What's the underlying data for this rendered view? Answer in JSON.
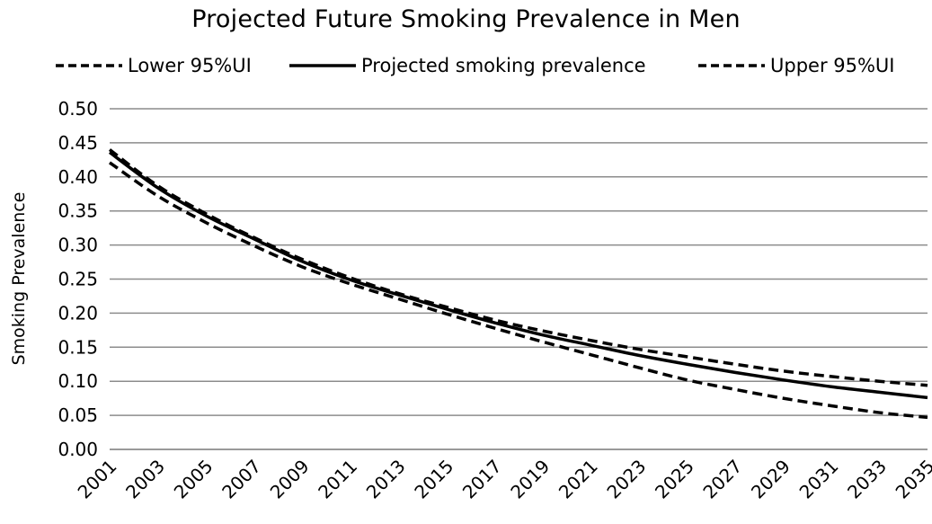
{
  "chart_data": {
    "type": "line",
    "title": "Projected Future Smoking Prevalence in Men",
    "xlabel": "",
    "ylabel": "Smoking Prevalence",
    "x": [
      2001,
      2003,
      2005,
      2007,
      2009,
      2011,
      2013,
      2015,
      2017,
      2019,
      2021,
      2023,
      2025,
      2027,
      2029,
      2031,
      2033,
      2035
    ],
    "x_tick_labels": [
      "2001",
      "2003",
      "2005",
      "2007",
      "2009",
      "2011",
      "2013",
      "2015",
      "2017",
      "2019",
      "2021",
      "2023",
      "2025",
      "2027",
      "2029",
      "2031",
      "2033",
      "2035"
    ],
    "ylim": [
      0,
      0.5
    ],
    "y_tick_labels": [
      "0.00",
      "0.05",
      "0.10",
      "0.15",
      "0.20",
      "0.25",
      "0.30",
      "0.35",
      "0.40",
      "0.45",
      "0.50"
    ],
    "grid": "horizontal",
    "legend_position": "top",
    "series": [
      {
        "name": "Lower 95%UI",
        "style": "dashed",
        "color": "#000000",
        "values": [
          0.421,
          0.372,
          0.333,
          0.299,
          0.268,
          0.243,
          0.221,
          0.199,
          0.178,
          0.158,
          0.139,
          0.12,
          0.102,
          0.088,
          0.075,
          0.064,
          0.054,
          0.047
        ]
      },
      {
        "name": "Projected smoking prevalence",
        "style": "solid",
        "color": "#000000",
        "values": [
          0.436,
          0.384,
          0.343,
          0.309,
          0.276,
          0.249,
          0.227,
          0.206,
          0.186,
          0.168,
          0.153,
          0.138,
          0.125,
          0.113,
          0.102,
          0.092,
          0.084,
          0.076
        ]
      },
      {
        "name": "Upper 95%UI",
        "style": "dashed",
        "color": "#000000",
        "values": [
          0.44,
          0.387,
          0.346,
          0.311,
          0.279,
          0.252,
          0.229,
          0.209,
          0.19,
          0.174,
          0.16,
          0.147,
          0.136,
          0.125,
          0.115,
          0.107,
          0.1,
          0.094
        ]
      }
    ]
  }
}
